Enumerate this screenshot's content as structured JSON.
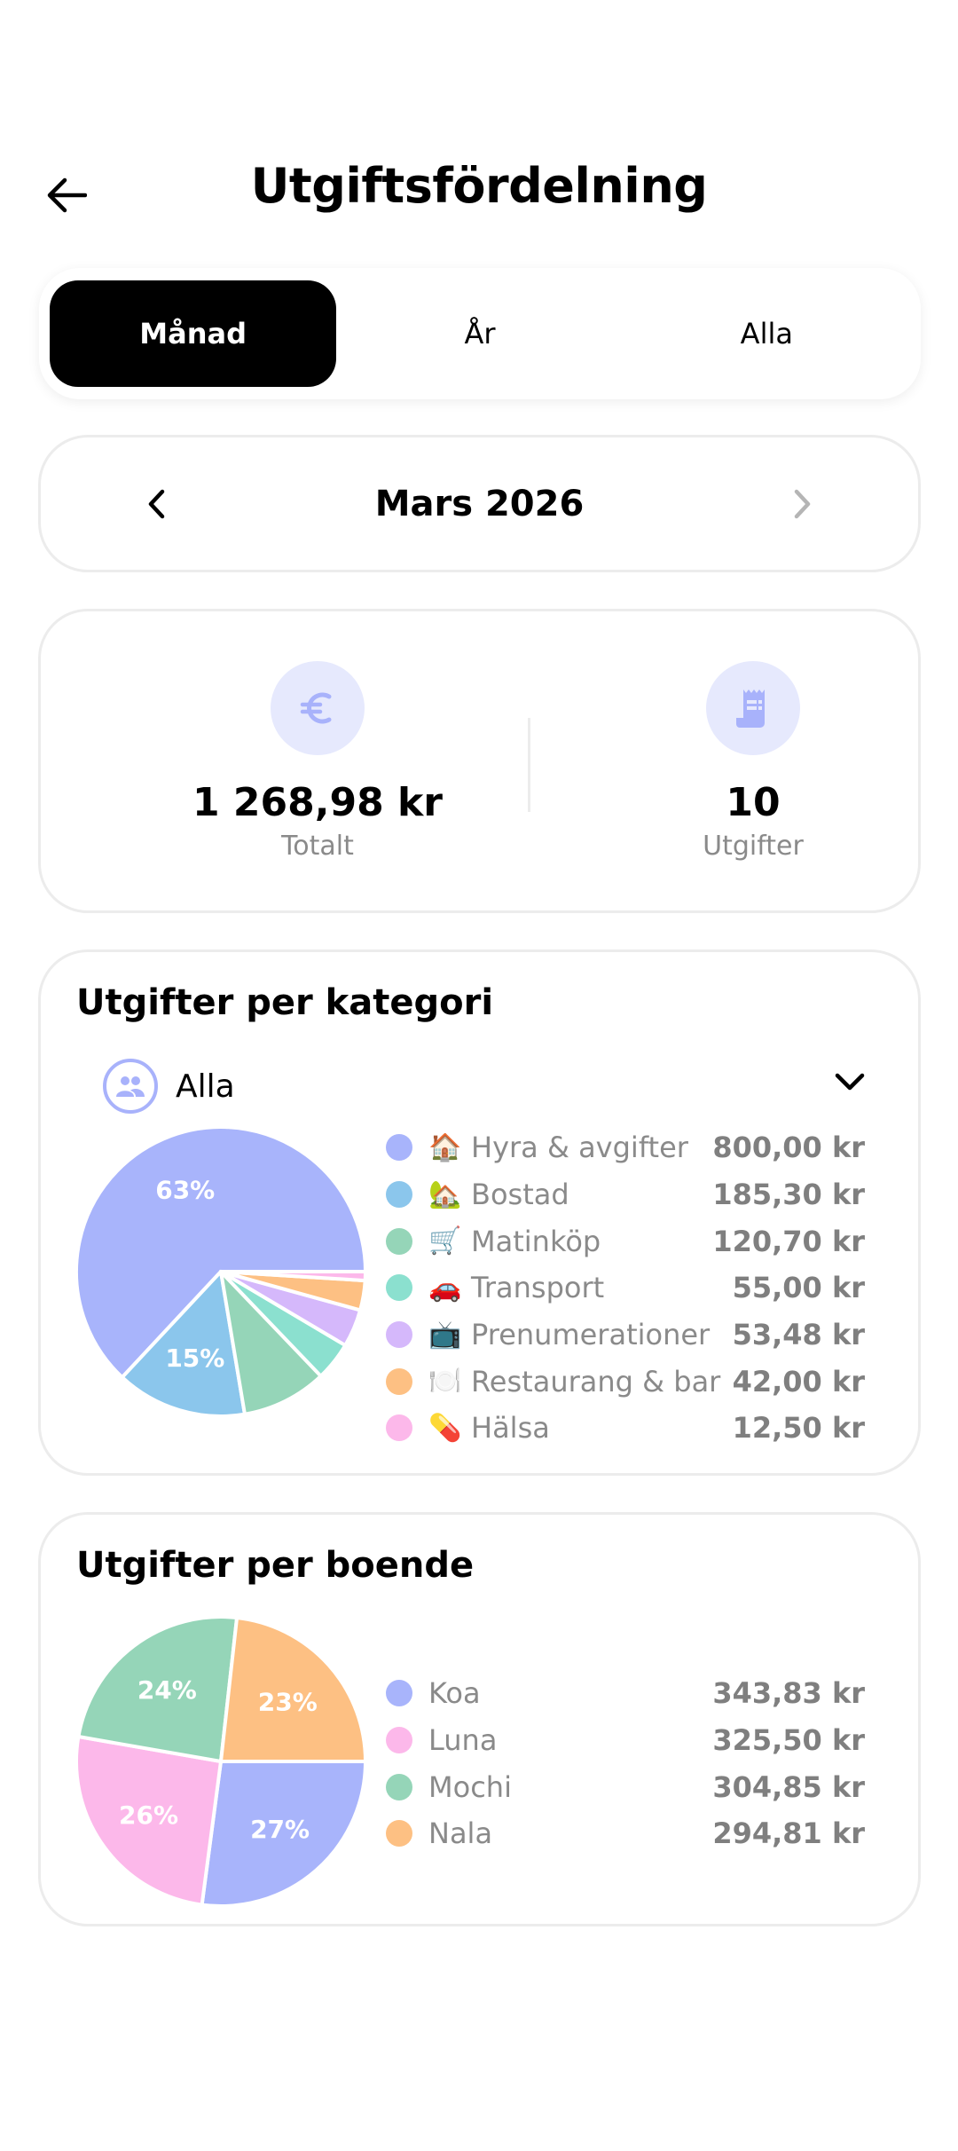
{
  "header": {
    "title": "Utgiftsfördelning",
    "back_icon": "arrow-left-icon"
  },
  "period_tabs": [
    {
      "label": "Månad",
      "active": true
    },
    {
      "label": "År",
      "active": false
    },
    {
      "label": "Alla",
      "active": false
    }
  ],
  "month_nav": {
    "label": "Mars 2026",
    "prev_icon": "chevron-left-icon",
    "next_icon": "chevron-right-icon",
    "next_disabled": true
  },
  "summary": {
    "total": {
      "value": "1 268,98 kr",
      "label": "Totalt",
      "icon": "euro-icon"
    },
    "count": {
      "value": "10",
      "label": "Utgifter",
      "icon": "receipt-icon"
    }
  },
  "category_card": {
    "title": "Utgifter per kategori",
    "filter": {
      "label": "Alla",
      "icon": "people-icon",
      "chevron": "chevron-down-icon"
    },
    "items": [
      {
        "emoji": "🏠",
        "name": "Hyra & avgifter",
        "amount": "800,00 kr",
        "color": "#a8b4fb"
      },
      {
        "emoji": "🏡",
        "name": "Bostad",
        "amount": "185,30 kr",
        "color": "#8bc6ec"
      },
      {
        "emoji": "🛒",
        "name": "Matinköp",
        "amount": "120,70 kr",
        "color": "#95d5b8"
      },
      {
        "emoji": "🚗",
        "name": "Transport",
        "amount": "55,00 kr",
        "color": "#8be0cf"
      },
      {
        "emoji": "📺",
        "name": "Prenumerationer",
        "amount": "53,48 kr",
        "color": "#d5b8fb"
      },
      {
        "emoji": "🍽️",
        "name": "Restaurang & bar",
        "amount": "42,00 kr",
        "color": "#fdc083"
      },
      {
        "emoji": "💊",
        "name": "Hälsa",
        "amount": "12,50 kr",
        "color": "#fcb8ea"
      }
    ]
  },
  "resident_card": {
    "title": "Utgifter per boende",
    "items": [
      {
        "name": "Koa",
        "amount": "343,83 kr",
        "color": "#a8b4fb"
      },
      {
        "name": "Luna",
        "amount": "325,50 kr",
        "color": "#fcb8ea"
      },
      {
        "name": "Mochi",
        "amount": "304,85 kr",
        "color": "#95d5b8"
      },
      {
        "name": "Nala",
        "amount": "294,81 kr",
        "color": "#fdc083"
      }
    ]
  },
  "chart_data": [
    {
      "type": "pie",
      "title": "Utgifter per kategori",
      "categories": [
        "Hyra & avgifter",
        "Bostad",
        "Matinköp",
        "Transport",
        "Prenumerationer",
        "Restaurang & bar",
        "Hälsa"
      ],
      "values": [
        800.0,
        185.3,
        120.7,
        55.0,
        53.48,
        42.0,
        12.5
      ],
      "colors": [
        "#a8b4fb",
        "#8bc6ec",
        "#95d5b8",
        "#8be0cf",
        "#d5b8fb",
        "#fdc083",
        "#fcb8ea"
      ],
      "slice_labels": [
        "63%",
        "15%",
        "",
        "",
        "",
        "",
        ""
      ],
      "legend_position": "right",
      "unit": "kr"
    },
    {
      "type": "pie",
      "title": "Utgifter per boende",
      "categories": [
        "Koa",
        "Luna",
        "Mochi",
        "Nala"
      ],
      "values": [
        343.83,
        325.5,
        304.85,
        294.81
      ],
      "colors": [
        "#a8b4fb",
        "#fcb8ea",
        "#95d5b8",
        "#fdc083"
      ],
      "slice_labels": [
        "27%",
        "26%",
        "24%",
        "23%"
      ],
      "legend_position": "right",
      "unit": "kr"
    }
  ]
}
